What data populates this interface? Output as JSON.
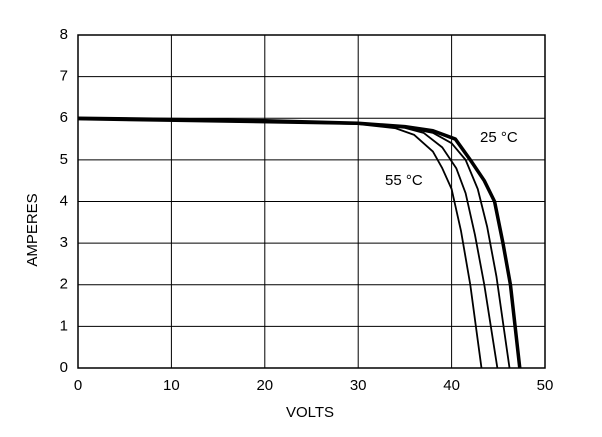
{
  "chart_data": {
    "type": "line",
    "xlabel": "VOLTS",
    "ylabel": "AMPERES",
    "xlim": [
      0,
      50
    ],
    "xticks": [
      0,
      10,
      20,
      30,
      40,
      50
    ],
    "ylim": [
      0,
      8
    ],
    "yticks": [
      0,
      1,
      2,
      3,
      4,
      5,
      6,
      7,
      8
    ],
    "grid": true,
    "annotations": [
      "25 °C",
      "55 °C"
    ],
    "series": [
      {
        "color": "#000000",
        "width": 3.5,
        "x": [
          0,
          10,
          20,
          30,
          35,
          38,
          40.4,
          42,
          43.5,
          44.6,
          45.5,
          46.3,
          46.8,
          47.3
        ],
        "values": [
          6.0,
          5.97,
          5.94,
          5.88,
          5.8,
          5.7,
          5.5,
          5.0,
          4.5,
          4.0,
          3.0,
          2.0,
          1.0,
          0
        ]
      },
      {
        "color": "#000000",
        "width": 1.8,
        "x": [
          0,
          30,
          35,
          38,
          40,
          41.5,
          42.8,
          43.8,
          44.8,
          45.5,
          46.2
        ],
        "values": [
          5.99,
          5.87,
          5.78,
          5.65,
          5.4,
          5.0,
          4.3,
          3.4,
          2.2,
          1.1,
          0
        ]
      },
      {
        "color": "#000000",
        "width": 1.8,
        "x": [
          0,
          30,
          35,
          37,
          39,
          40.5,
          41.5,
          42.5,
          43.5,
          44.2,
          44.9
        ],
        "values": [
          5.98,
          5.87,
          5.77,
          5.65,
          5.3,
          4.8,
          4.2,
          3.2,
          2.0,
          1.0,
          0
        ]
      },
      {
        "color": "#000000",
        "width": 1.8,
        "x": [
          0,
          30,
          34,
          36,
          38,
          39,
          40,
          41,
          42,
          42.6,
          43.2
        ],
        "values": [
          5.97,
          5.86,
          5.76,
          5.6,
          5.2,
          4.8,
          4.3,
          3.3,
          2.0,
          1.0,
          0
        ]
      }
    ]
  }
}
